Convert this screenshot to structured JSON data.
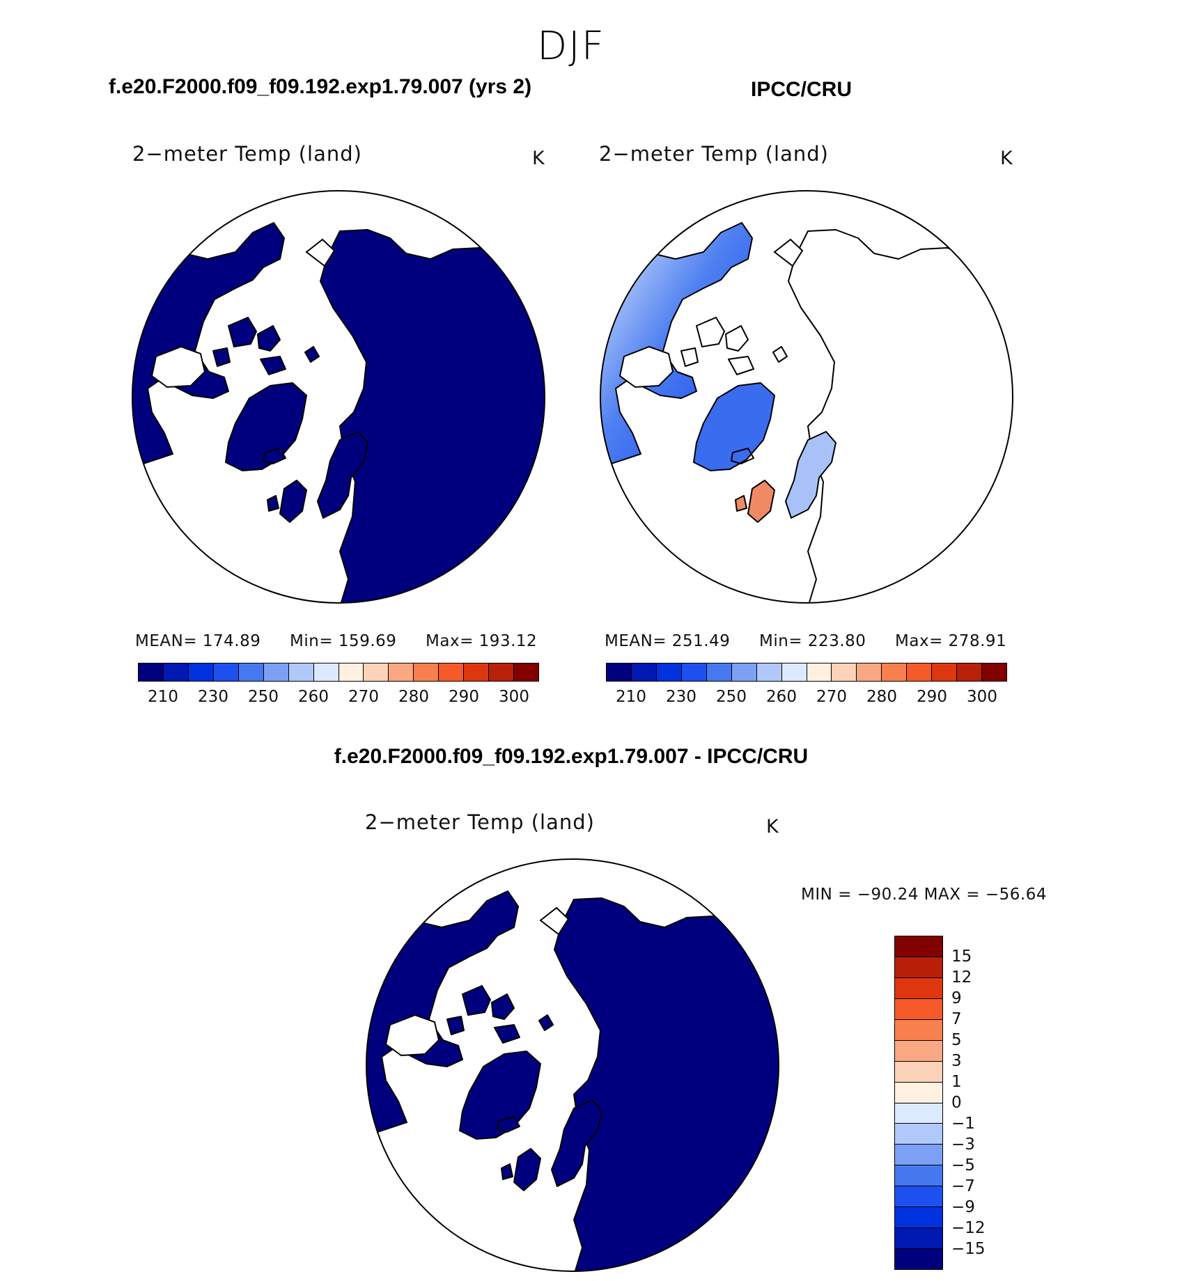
{
  "figure": {
    "season": "DJF"
  },
  "panels": {
    "model": {
      "case_title": "f.e20.F2000.f09_f09.192.exp1.79.007 (yrs 2)",
      "var_title": "2−meter Temp (land)",
      "units": "K",
      "stats": {
        "mean_label": "MEAN=",
        "mean": "174.89",
        "min_label": "Min=",
        "min": "159.69",
        "max_label": "Max=",
        "max": "193.12"
      },
      "fill": "solid-dark"
    },
    "obs": {
      "case_title": "IPCC/CRU",
      "var_title": "2−meter Temp (land)",
      "units": "K",
      "stats": {
        "mean_label": "MEAN=",
        "mean": "251.49",
        "min_label": "Min=",
        "min": "223.80",
        "max_label": "Max=",
        "max": "278.91"
      },
      "fill": "gradient"
    },
    "diff": {
      "case_title": "f.e20.F2000.f09_f09.192.exp1.79.007 - IPCC/CRU",
      "var_title": "2−meter Temp (land)",
      "units": "K",
      "minmax": "MIN = −90.24 MAX = −56.64",
      "fill": "solid-dark"
    }
  },
  "abs_colorbar": {
    "colors": [
      "#00007f",
      "#0019b3",
      "#0032e0",
      "#1e50f0",
      "#4678f0",
      "#7ca0f5",
      "#b0c8fa",
      "#dceaff",
      "#fff0e0",
      "#fcd2b8",
      "#f9a883",
      "#f8804e",
      "#f55a28",
      "#de3710",
      "#b8200a",
      "#820000"
    ],
    "tick_labels": [
      "210",
      "230",
      "250",
      "260",
      "270",
      "280",
      "290",
      "300"
    ]
  },
  "diff_colorbar": {
    "colors": [
      "#820000",
      "#b8200a",
      "#de3710",
      "#f55a28",
      "#f8804e",
      "#f9a883",
      "#fcd2b8",
      "#fff0e0",
      "#dceaff",
      "#b0c8fa",
      "#7ca0f5",
      "#4678f0",
      "#1e50f0",
      "#0032e0",
      "#0019b3",
      "#00007f"
    ],
    "tick_labels": [
      "15",
      "12",
      "9",
      "7",
      "5",
      "3",
      "1",
      "0",
      "−1",
      "−3",
      "−5",
      "−7",
      "−9",
      "−12",
      "−15"
    ]
  }
}
